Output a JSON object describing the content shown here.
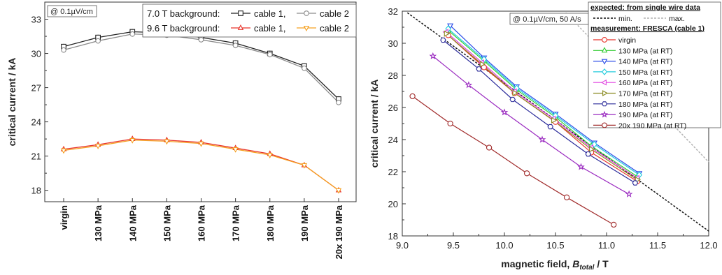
{
  "chart_data": [
    {
      "type": "line",
      "annotation": "@ 0.1µV/cm",
      "ylabel": "critical current / kA",
      "categories": [
        "virgin",
        "130 MPa",
        "140 MPa",
        "150 MPa",
        "160 MPa",
        "170 MPa",
        "180 MPa",
        "190 MPa",
        "20x 190 MPa"
      ],
      "ylim": [
        17,
        34.5
      ],
      "yticks": [
        "18",
        "21",
        "24",
        "27",
        "30",
        "33"
      ],
      "legend": {
        "group1": "7.0 T background:",
        "group2": "9.6 T background:"
      },
      "series": [
        {
          "name": "cable 1,",
          "group": "7.0 T background:",
          "color": "#222222",
          "marker": "square",
          "values": [
            30.6,
            31.4,
            31.9,
            31.8,
            31.4,
            30.9,
            30.0,
            28.9,
            26.0
          ]
        },
        {
          "name": "cable 2",
          "group": "7.0 T background:",
          "color": "#8c8c8c",
          "marker": "circle",
          "values": [
            30.3,
            31.1,
            31.7,
            31.6,
            31.2,
            30.7,
            29.9,
            28.7,
            25.7
          ]
        },
        {
          "name": "cable 1,",
          "group": "9.6 T background:",
          "color": "#e8332a",
          "marker": "triangle-up",
          "values": [
            21.6,
            22.0,
            22.5,
            22.4,
            22.2,
            21.7,
            21.2,
            20.2,
            18.0
          ]
        },
        {
          "name": "cable 2",
          "group": "9.6 T background:",
          "color": "#f5a020",
          "marker": "triangle-down",
          "values": [
            21.5,
            21.9,
            22.4,
            22.3,
            22.1,
            21.6,
            21.1,
            20.2,
            18.0
          ]
        }
      ]
    },
    {
      "type": "line",
      "annotation": "@ 0.1µV/cm, 50 A/s",
      "ylabel": "critical current / kA",
      "xlabel_parts": [
        "magnetic field, ",
        "B",
        "total",
        " / T"
      ],
      "xlim": [
        9.0,
        12.0
      ],
      "ylim": [
        18,
        32
      ],
      "xticks": [
        "9.0",
        "9.5",
        "10.0",
        "10.5",
        "11.0",
        "11.5",
        "12.0"
      ],
      "yticks": [
        "18",
        "20",
        "22",
        "24",
        "26",
        "28",
        "30",
        "32"
      ],
      "legend": {
        "expected_title": "expected: from single wire data",
        "min_label": "min.",
        "max_label": "max.",
        "measured_title": "measurement: FRESCA (cable 1)"
      },
      "expected": [
        {
          "name": "min.",
          "color": "#111111",
          "x": [
            9.05,
            12.0
          ],
          "y": [
            31.9,
            18.3
          ]
        },
        {
          "name": "max.",
          "color": "#b4b4b4",
          "x": [
            10.6,
            12.0
          ],
          "y": [
            31.9,
            22.6
          ]
        }
      ],
      "series": [
        {
          "name": "virgin",
          "color": "#e8332a",
          "marker": "circle",
          "x": [
            9.45,
            9.8,
            10.1,
            10.5,
            10.85,
            11.3
          ],
          "y": [
            30.5,
            28.5,
            26.9,
            25.1,
            23.2,
            21.4
          ]
        },
        {
          "name": "130 MPa (at RT)",
          "color": "#33cc33",
          "marker": "triangle-up",
          "x": [
            9.45,
            9.8,
            10.12,
            10.5,
            10.85,
            11.3
          ],
          "y": [
            30.8,
            28.9,
            27.1,
            25.4,
            23.6,
            21.7
          ]
        },
        {
          "name": "140 MPa (at RT)",
          "color": "#2a4ce8",
          "marker": "triangle-down",
          "x": [
            9.47,
            9.8,
            10.12,
            10.5,
            10.88,
            11.32
          ],
          "y": [
            31.1,
            29.1,
            27.3,
            25.6,
            23.8,
            21.9
          ]
        },
        {
          "name": "150 MPa (at RT)",
          "color": "#22ccdd",
          "marker": "diamond",
          "x": [
            9.45,
            9.8,
            10.12,
            10.5,
            10.88,
            11.32
          ],
          "y": [
            30.9,
            29.0,
            27.2,
            25.5,
            23.7,
            21.8
          ]
        },
        {
          "name": "160 MPa (at RT)",
          "color": "#e040e0",
          "marker": "triangle-left",
          "x": [
            9.43,
            9.78,
            10.1,
            10.48,
            10.85,
            11.3
          ],
          "y": [
            30.7,
            28.8,
            27.0,
            25.3,
            23.5,
            21.6
          ]
        },
        {
          "name": "170 MPa (at RT)",
          "color": "#8a8a20",
          "marker": "triangle-right",
          "x": [
            9.43,
            9.78,
            10.1,
            10.48,
            10.85,
            11.3
          ],
          "y": [
            30.6,
            28.7,
            26.9,
            25.2,
            23.4,
            21.5
          ]
        },
        {
          "name": "180 MPa (at RT)",
          "color": "#2a2a9a",
          "marker": "hexagon",
          "x": [
            9.4,
            9.75,
            10.08,
            10.45,
            10.82,
            11.28
          ],
          "y": [
            30.2,
            28.4,
            26.5,
            24.8,
            23.1,
            21.3
          ]
        },
        {
          "name": "190 MPa (at RT)",
          "color": "#9a2ac0",
          "marker": "star",
          "x": [
            9.3,
            9.65,
            10.0,
            10.37,
            10.75,
            11.22
          ],
          "y": [
            29.2,
            27.4,
            25.7,
            24.0,
            22.3,
            20.6
          ]
        },
        {
          "name": "20x 190 MPa (at RT)",
          "color": "#a02a2a",
          "marker": "circle",
          "x": [
            9.1,
            9.47,
            9.85,
            10.22,
            10.61,
            11.07
          ],
          "y": [
            26.7,
            25.0,
            23.5,
            21.9,
            20.4,
            18.7
          ]
        }
      ]
    }
  ]
}
